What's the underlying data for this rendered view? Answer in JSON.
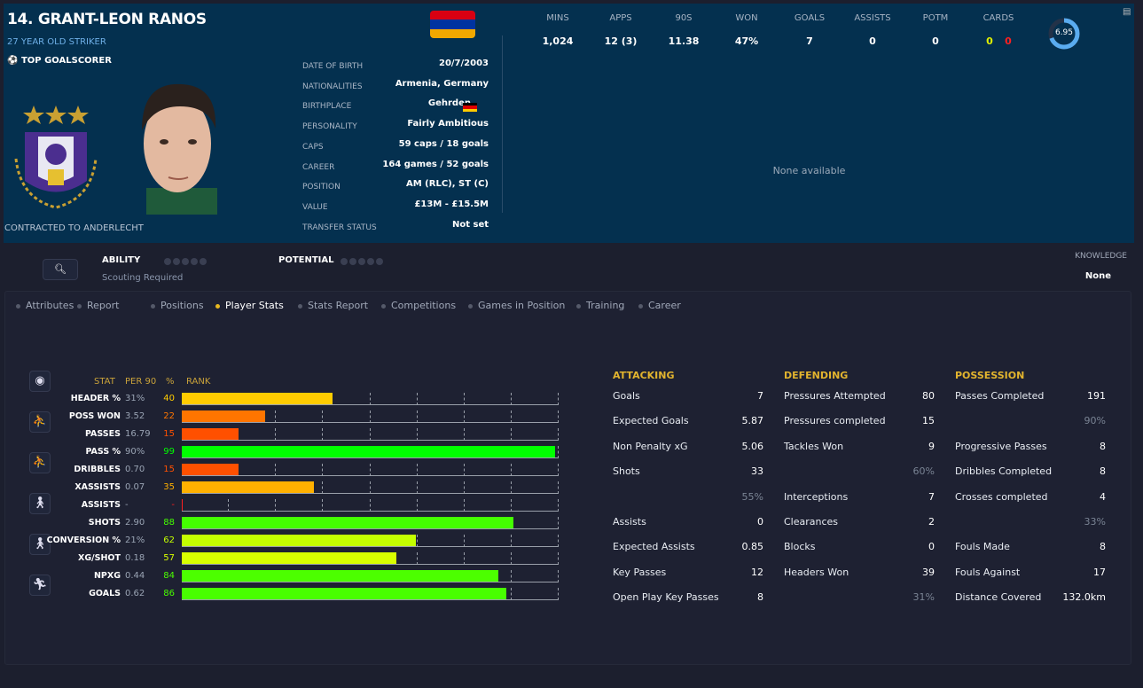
{
  "player": {
    "name": "14. GRANT-LEON RANOS",
    "subtitle": "27 YEAR OLD STRIKER",
    "award": "TOP GOALSCORER",
    "contract": "CONTRACTED TO ANDERLECHT",
    "flag_colors": [
      "#d90012",
      "#0033a0",
      "#f2a800"
    ]
  },
  "info": [
    {
      "label": "DATE OF BIRTH",
      "value": "20/7/2003"
    },
    {
      "label": "NATIONALITIES",
      "value": "Armenia, Germany"
    },
    {
      "label": "BIRTHPLACE",
      "value": "Gehrden"
    },
    {
      "label": "PERSONALITY",
      "value": "Fairly Ambitious"
    },
    {
      "label": "CAPS",
      "value": "59 caps / 18 goals"
    },
    {
      "label": "CAREER",
      "value": "164 games /  52 goals"
    },
    {
      "label": "POSITION",
      "value": "AM (RLC), ST (C)"
    },
    {
      "label": "VALUE",
      "value": "£13M - £15.5M"
    },
    {
      "label": "TRANSFER STATUS",
      "value": "Not set"
    }
  ],
  "season": [
    {
      "label": "MINS",
      "value": "1,024"
    },
    {
      "label": "APPS",
      "value": "12 (3)"
    },
    {
      "label": "90S",
      "value": "11.38"
    },
    {
      "label": "WON",
      "value": "47%"
    },
    {
      "label": "GOALS",
      "value": "7"
    },
    {
      "label": "ASSISTS",
      "value": "0"
    },
    {
      "label": "POTM",
      "value": "0"
    },
    {
      "label": "CARDS",
      "yellow": "0",
      "red": "0"
    }
  ],
  "rating": {
    "value": "6.95",
    "fraction": 0.695
  },
  "none_available": "None available",
  "ability": {
    "label": "ABILITY",
    "note": "Scouting Required",
    "potential_label": "POTENTIAL",
    "knowledge_label": "KNOWLEDGE",
    "knowledge_value": "None"
  },
  "tabs": [
    "Attributes",
    "Report",
    "Positions",
    "Player Stats",
    "Stats Report",
    "Competitions",
    "Games in Position",
    "Training",
    "Career"
  ],
  "active_tab": 3,
  "table_headers": {
    "stat": "STAT",
    "per90": "PER 90",
    "pct": "%",
    "rank": "RANK"
  },
  "stats": [
    {
      "stat": "HEADER %",
      "per90": "31%",
      "rank": "40",
      "value": 40,
      "color": "#ffcc00"
    },
    {
      "stat": "POSS WON",
      "per90": "3.52",
      "rank": "22",
      "value": 22,
      "color": "#ff7500"
    },
    {
      "stat": "PASSES",
      "per90": "16.79",
      "rank": "15",
      "value": 15,
      "color": "#ff5000"
    },
    {
      "stat": "PASS %",
      "per90": "90%",
      "rank": "99",
      "value": 99,
      "color": "#00ff00"
    },
    {
      "stat": "DRIBBLES",
      "per90": "0.70",
      "rank": "15",
      "value": 15,
      "color": "#ff5000"
    },
    {
      "stat": "XASSISTS",
      "per90": "0.07",
      "rank": "35",
      "value": 35,
      "color": "#ffb000"
    },
    {
      "stat": "ASSISTS",
      "per90": "-",
      "rank": "-",
      "value": 0,
      "color": "#ff2020"
    },
    {
      "stat": "SHOTS",
      "per90": "2.90",
      "rank": "88",
      "value": 88,
      "color": "#44ff00"
    },
    {
      "stat": "CONVERSION %",
      "per90": "21%",
      "rank": "62",
      "value": 62,
      "color": "#c4ff00"
    },
    {
      "stat": "XG/SHOT",
      "per90": "0.18",
      "rank": "57",
      "value": 57,
      "color": "#d8ff00"
    },
    {
      "stat": "NPXG",
      "per90": "0.44",
      "rank": "84",
      "value": 84,
      "color": "#4cff00"
    },
    {
      "stat": "GOALS",
      "per90": "0.62",
      "rank": "86",
      "value": 86,
      "color": "#48ff00"
    }
  ],
  "categories": [
    {
      "title": "ATTACKING",
      "rows": [
        [
          "Goals",
          "7"
        ],
        [
          "Expected Goals",
          "5.87"
        ],
        [
          "Non Penalty xG",
          "5.06"
        ],
        [
          "Shots",
          "33"
        ],
        [
          "",
          "55%"
        ],
        [
          "Assists",
          "0"
        ],
        [
          "Expected Assists",
          "0.85"
        ],
        [
          "Key Passes",
          "12"
        ],
        [
          "Open Play Key Passes",
          "8"
        ]
      ]
    },
    {
      "title": "DEFENDING",
      "rows": [
        [
          "Pressures Attempted",
          "80"
        ],
        [
          "Pressures completed",
          "15"
        ],
        [
          "Tackles Won",
          "9"
        ],
        [
          "",
          "60%"
        ],
        [
          "Interceptions",
          "7"
        ],
        [
          "Clearances",
          "2"
        ],
        [
          "Blocks",
          "0"
        ],
        [
          "Headers Won",
          "39"
        ],
        [
          "",
          "31%"
        ]
      ]
    },
    {
      "title": "POSSESSION",
      "rows": [
        [
          "Passes Completed",
          "191"
        ],
        [
          "",
          "90%"
        ],
        [
          "Progressive Passes",
          "8"
        ],
        [
          "Dribbles Completed",
          "8"
        ],
        [
          "Crosses completed",
          "4"
        ],
        [
          "",
          "33%"
        ],
        [
          "Fouls Made",
          "8"
        ],
        [
          "Fouls Against",
          "17"
        ],
        [
          "Distance Covered",
          "132.0km"
        ]
      ]
    }
  ]
}
